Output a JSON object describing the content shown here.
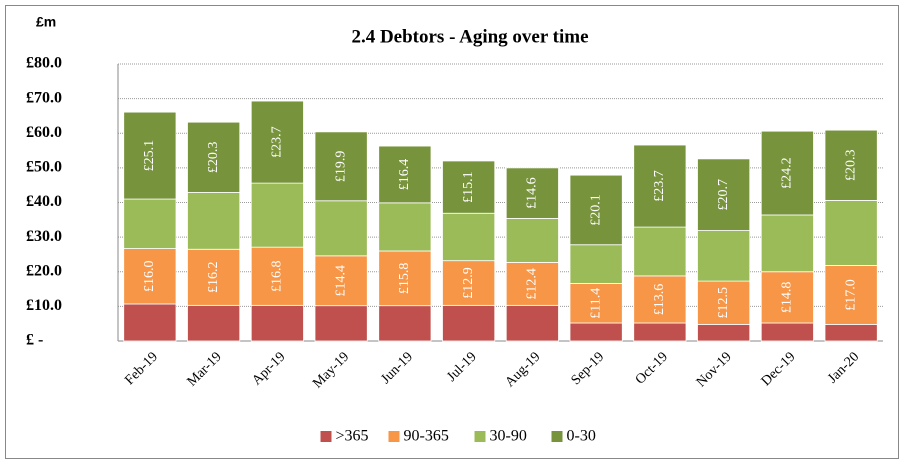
{
  "chart_data": {
    "type": "bar",
    "stacked": true,
    "unit_label": "£m",
    "title": "2.4  Debtors - Aging over time",
    "categories": [
      "Feb-19",
      "Mar-19",
      "Apr-19",
      "May-19",
      "Jun-19",
      "Jul-19",
      "Aug-19",
      "Sep-19",
      "Oct-19",
      "Nov-19",
      "Dec-19",
      "Jan-20"
    ],
    "series": [
      {
        "name": ">365",
        "color": "#c0504d",
        "values": [
          10.7,
          10.3,
          10.3,
          10.2,
          10.2,
          10.3,
          10.3,
          5.2,
          5.2,
          4.8,
          5.2,
          4.8
        ]
      },
      {
        "name": "90-365",
        "color": "#f79646",
        "values": [
          16.0,
          16.2,
          16.8,
          14.4,
          15.8,
          12.9,
          12.4,
          11.4,
          13.6,
          12.5,
          14.8,
          17.0
        ],
        "value_labels": [
          "£16.0",
          "£16.2",
          "£16.8",
          "£14.4",
          "£15.8",
          "£12.9",
          "£12.4",
          "£11.4",
          "£13.6",
          "£12.5",
          "£14.8",
          "£17.0"
        ]
      },
      {
        "name": "30-90",
        "color": "#9bbb59",
        "values": [
          14.3,
          16.4,
          18.5,
          15.9,
          13.9,
          13.7,
          12.7,
          11.2,
          14.1,
          14.6,
          16.4,
          18.8
        ]
      },
      {
        "name": "0-30",
        "color": "#77933c",
        "values": [
          25.1,
          20.3,
          23.7,
          19.9,
          16.4,
          15.1,
          14.6,
          20.1,
          23.7,
          20.7,
          24.2,
          20.3
        ],
        "value_labels": [
          "£25.1",
          "£20.3",
          "£23.7",
          "£19.9",
          "£16.4",
          "£15.1",
          "£14.6",
          "£20.1",
          "£23.7",
          "£20.7",
          "£24.2",
          "£20.3"
        ]
      }
    ],
    "ylim": [
      0,
      80
    ],
    "yticks": [
      {
        "value": 0,
        "label": "£ -"
      },
      {
        "value": 10,
        "label": "£10.0"
      },
      {
        "value": 20,
        "label": "£20.0"
      },
      {
        "value": 30,
        "label": "£30.0"
      },
      {
        "value": 40,
        "label": "£40.0"
      },
      {
        "value": 50,
        "label": "£50.0"
      },
      {
        "value": 60,
        "label": "£60.0"
      },
      {
        "value": 70,
        "label": "£70.0"
      },
      {
        "value": 80,
        "label": "£80.0"
      }
    ],
    "grid": true,
    "legend": "bottom"
  }
}
